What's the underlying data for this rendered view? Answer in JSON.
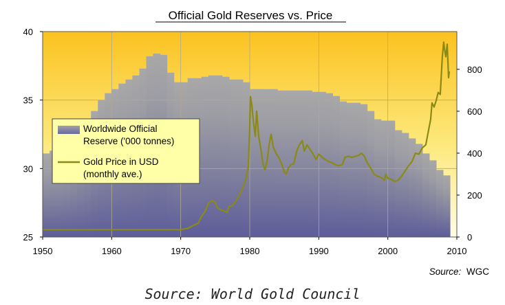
{
  "chart_data": {
    "type": "bar+line",
    "title": "Official Gold Reserves vs. Price",
    "source_label": "Source:",
    "source_value": "WGC",
    "x_ticks": [
      "1950",
      "1960",
      "1970",
      "1980",
      "1990",
      "2000",
      "2010"
    ],
    "xlim": [
      1950,
      2010
    ],
    "y_left": {
      "ticks": [
        "25",
        "30",
        "35",
        "40"
      ],
      "lim": [
        25,
        40
      ]
    },
    "y_right": {
      "ticks": [
        "0",
        "200",
        "400",
        "600",
        "800"
      ],
      "lim": [
        0,
        980
      ]
    },
    "legend": [
      {
        "label_lines": [
          "Worldwide Official",
          "Reserve ('000 tonnes)"
        ]
      },
      {
        "label_lines": [
          "Gold Price in USD",
          "(monthly ave.)"
        ]
      }
    ],
    "series": [
      {
        "name": "Worldwide Official Reserve ('000 tonnes)",
        "axis": "left",
        "type": "bar",
        "x": [
          1950,
          1951,
          1952,
          1953,
          1954,
          1955,
          1956,
          1957,
          1958,
          1959,
          1960,
          1961,
          1962,
          1963,
          1964,
          1965,
          1966,
          1967,
          1968,
          1969,
          1970,
          1971,
          1972,
          1973,
          1974,
          1975,
          1976,
          1977,
          1978,
          1979,
          1980,
          1981,
          1982,
          1983,
          1984,
          1985,
          1986,
          1987,
          1988,
          1989,
          1990,
          1991,
          1992,
          1993,
          1994,
          1995,
          1996,
          1997,
          1998,
          1999,
          2000,
          2001,
          2002,
          2003,
          2004,
          2005,
          2006,
          2007,
          2008
        ],
        "values": [
          31.1,
          31.3,
          31.4,
          31.6,
          32.0,
          32.6,
          33.2,
          34.2,
          35.0,
          35.5,
          35.8,
          36.2,
          36.5,
          36.8,
          37.3,
          38.2,
          38.4,
          38.3,
          37.0,
          36.3,
          36.3,
          36.6,
          36.6,
          36.7,
          36.8,
          36.8,
          36.7,
          36.5,
          36.5,
          36.3,
          35.8,
          35.8,
          35.8,
          35.8,
          35.7,
          35.7,
          35.7,
          35.7,
          35.7,
          35.6,
          35.6,
          35.5,
          35.3,
          34.9,
          34.8,
          34.8,
          34.7,
          34.2,
          33.6,
          33.5,
          33.5,
          32.8,
          32.6,
          32.2,
          31.8,
          31.1,
          30.6,
          29.9,
          29.5
        ]
      },
      {
        "name": "Gold Price in USD (monthly ave.)",
        "axis": "right",
        "type": "line",
        "x": [
          1950,
          1955,
          1960,
          1965,
          1969.9,
          1971,
          1972,
          1972.5,
          1973,
          1973.5,
          1974,
          1974.5,
          1975,
          1975.3,
          1975.8,
          1976.2,
          1976.7,
          1977,
          1977.5,
          1978,
          1978.5,
          1979,
          1979.4,
          1979.8,
          1980.0,
          1980.1,
          1980.3,
          1980.5,
          1980.8,
          1981.0,
          1981.3,
          1981.6,
          1981.9,
          1982.2,
          1982.5,
          1982.8,
          1983.1,
          1983.4,
          1983.8,
          1984.2,
          1984.6,
          1985.0,
          1985.3,
          1985.6,
          1986.0,
          1986.4,
          1986.8,
          1987.2,
          1987.6,
          1987.9,
          1988.3,
          1988.7,
          1989.1,
          1989.6,
          1990.0,
          1990.5,
          1990.9,
          1991.4,
          1991.9,
          1992.4,
          1992.9,
          1993.4,
          1993.8,
          1994.3,
          1994.8,
          1995.3,
          1995.8,
          1996.2,
          1996.6,
          1997.0,
          1997.5,
          1998.0,
          1998.5,
          1999.0,
          1999.5,
          1999.7,
          2000.0,
          2000.5,
          2001.0,
          2001.5,
          2002.0,
          2002.5,
          2003.0,
          2003.5,
          2004.0,
          2004.5,
          2005.0,
          2005.5,
          2005.9,
          2006.2,
          2006.4,
          2006.7,
          2007.0,
          2007.3,
          2007.6,
          2007.9,
          2008.1,
          2008.2,
          2008.4,
          2008.6,
          2008.8,
          2008.9
        ],
        "values": [
          35,
          35,
          35,
          35,
          35,
          41,
          58,
          65,
          97,
          120,
          160,
          175,
          165,
          140,
          130,
          125,
          117,
          145,
          150,
          170,
          200,
          235,
          270,
          340,
          530,
          670,
          630,
          560,
          480,
          600,
          480,
          420,
          350,
          320,
          360,
          440,
          490,
          430,
          400,
          380,
          350,
          310,
          300,
          330,
          345,
          350,
          410,
          440,
          460,
          410,
          440,
          420,
          400,
          370,
          395,
          380,
          370,
          360,
          355,
          345,
          340,
          345,
          380,
          385,
          380,
          385,
          390,
          400,
          385,
          355,
          330,
          300,
          290,
          285,
          270,
          300,
          280,
          275,
          265,
          270,
          290,
          315,
          340,
          360,
          400,
          395,
          425,
          440,
          510,
          560,
          640,
          620,
          650,
          690,
          680,
          860,
          930,
          900,
          860,
          920,
          760,
          790
        ]
      }
    ]
  },
  "footer": {
    "caption": "Source: World Gold Council"
  }
}
